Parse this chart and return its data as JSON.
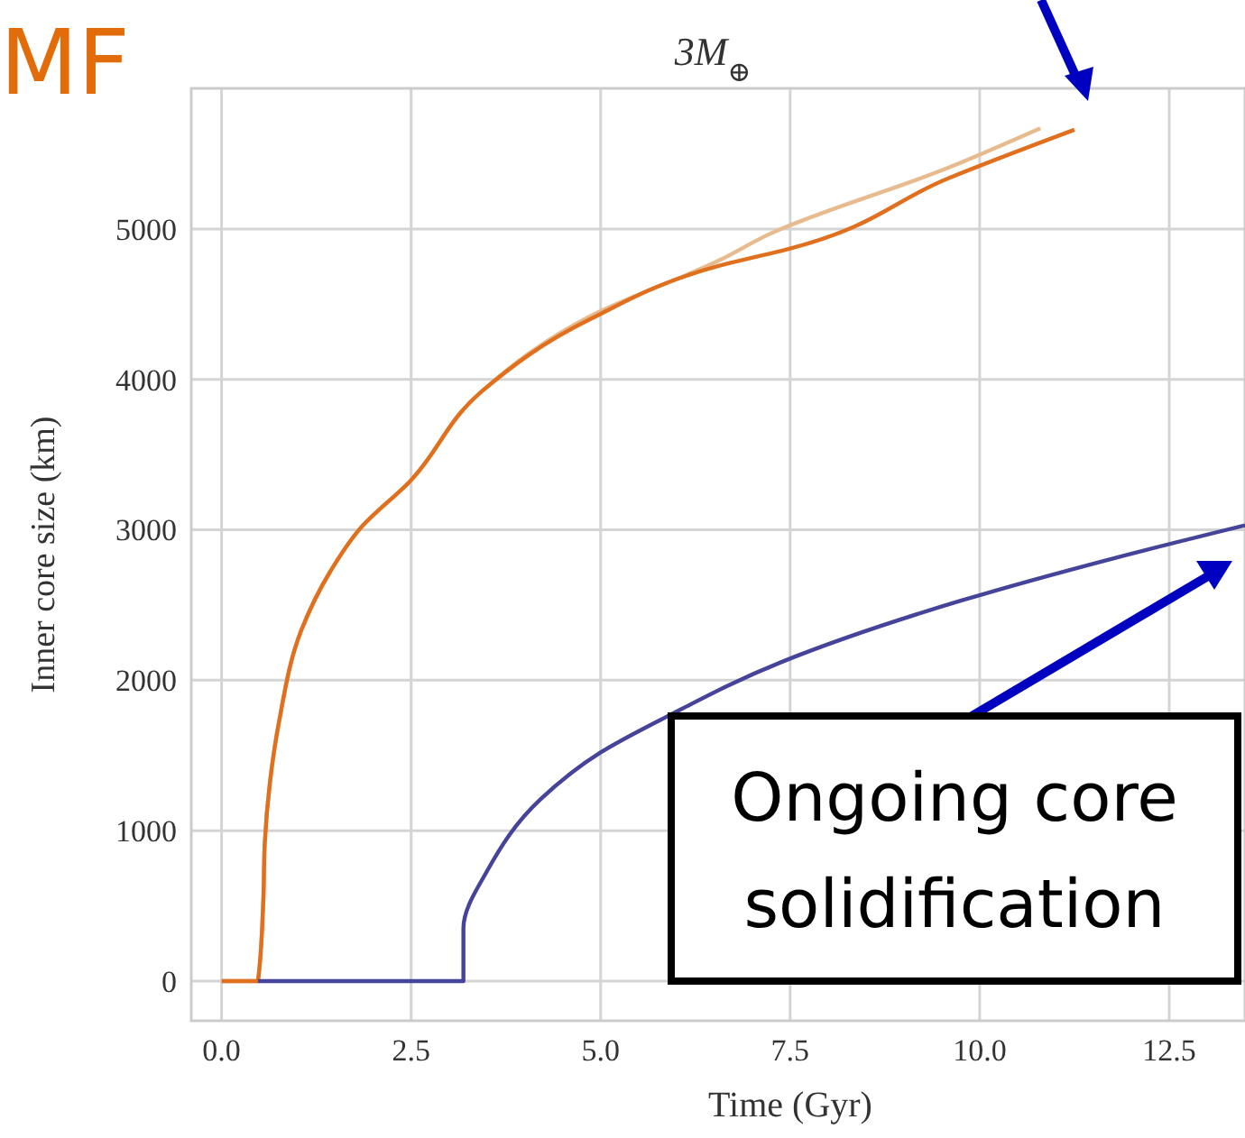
{
  "chart_data": {
    "type": "line",
    "title": "3M$_{⊕}$",
    "xlabel": "Time (Gyr)",
    "ylabel": "Inner core size (km)",
    "annotations": [
      "MF",
      "Ongoing core solidification"
    ],
    "xlim": [
      -0.4,
      13.5
    ],
    "ylim": [
      -264,
      5935
    ],
    "xticks": [
      {
        "value": 0,
        "label": "0.0"
      },
      {
        "value": 2.5,
        "label": "2.5"
      },
      {
        "value": 5,
        "label": "5.0"
      },
      {
        "value": 7.5,
        "label": "7.5"
      },
      {
        "value": 10,
        "label": "10.0"
      },
      {
        "value": 12.5,
        "label": "12.5"
      }
    ],
    "yticks": [
      0,
      1000,
      2000,
      3000,
      4000,
      5000
    ],
    "grid": true,
    "marker": "none",
    "line_style": "solid",
    "series": [
      {
        "color": "#e8bb8e",
        "x": [
          0,
          0.48,
          0.55,
          0.57,
          0.64,
          0.76,
          1.05,
          1.43,
          1.83,
          2.48,
          3.43,
          4.86,
          6.6,
          7.2,
          9.6,
          10.8
        ],
        "values": [
          0,
          0,
          530,
          920,
          1330,
          1730,
          2330,
          2720,
          3010,
          3320,
          3920,
          4420,
          4800,
          4960,
          5410,
          5670
        ]
      },
      {
        "color": "#e0701e",
        "x": [
          0,
          0.48,
          0.55,
          0.57,
          0.64,
          0.76,
          1.05,
          1.43,
          1.83,
          2.48,
          3.43,
          4.86,
          6.6,
          7.5,
          9.6,
          11.25
        ],
        "values": [
          0,
          0,
          530,
          920,
          1330,
          1730,
          2330,
          2720,
          3010,
          3320,
          3920,
          4400,
          4760,
          4870,
          5340,
          5660
        ]
      },
      {
        "color": "#45439a",
        "x": [
          0.48,
          3.19,
          3.19,
          3.5,
          4.21,
          5,
          5.88,
          7.38,
          9.76,
          11.76,
          13.5
        ],
        "values": [
          0,
          0,
          350,
          730,
          1210,
          1520,
          1760,
          2120,
          2530,
          2810,
          3030
        ]
      }
    ]
  }
}
